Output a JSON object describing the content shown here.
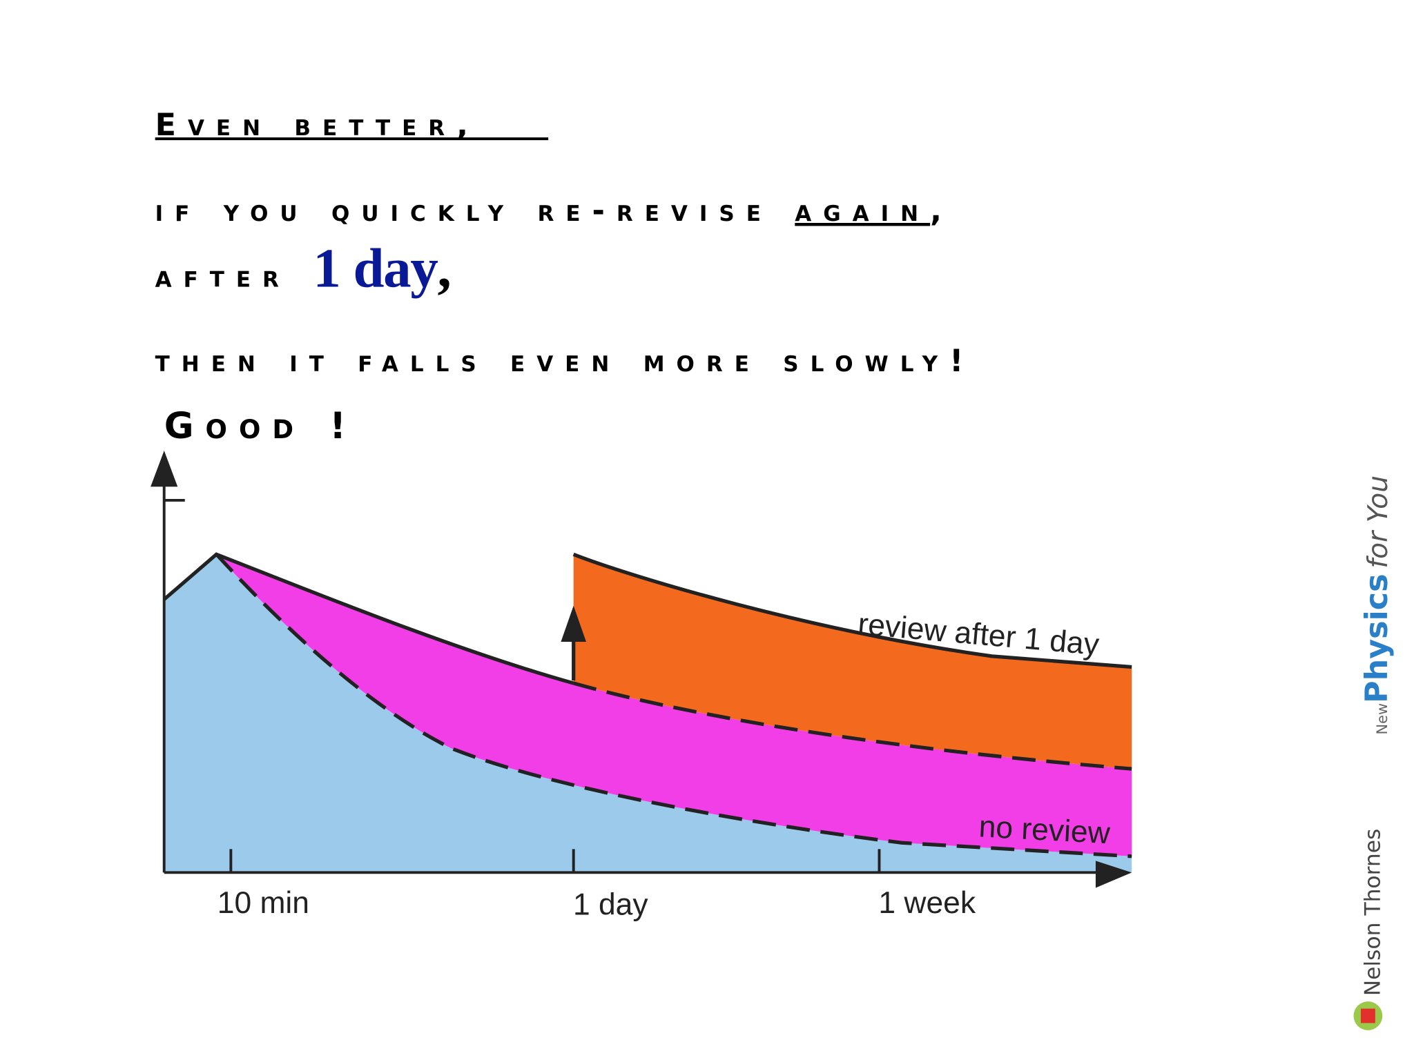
{
  "heading": "Even better,",
  "line1": {
    "before": "if you quickly re-revise ",
    "emphasis": "again",
    "after": ","
  },
  "line2": {
    "before": "after ",
    "highlight": "1 day",
    "after": ","
  },
  "line3": "then it falls even more slowly!",
  "line4": "Good !",
  "diagram": {
    "curve_labels": [
      "review after 1 day",
      "no review"
    ],
    "x_labels": [
      "10 min",
      "1 day",
      "1 week"
    ]
  },
  "credits": {
    "series_prefix": "New",
    "series": "Physics",
    "series_suffix": "for You",
    "publisher": "Nelson Thornes"
  }
}
